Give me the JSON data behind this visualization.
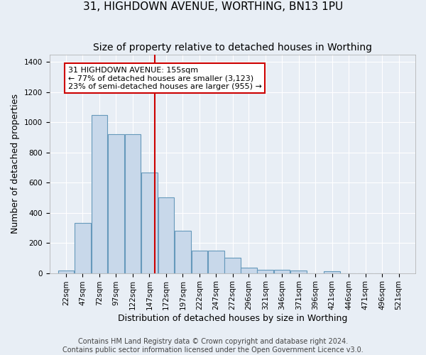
{
  "title": "31, HIGHDOWN AVENUE, WORTHING, BN13 1PU",
  "subtitle": "Size of property relative to detached houses in Worthing",
  "xlabel": "Distribution of detached houses by size in Worthing",
  "ylabel": "Number of detached properties",
  "footer_line1": "Contains HM Land Registry data © Crown copyright and database right 2024.",
  "footer_line2": "Contains public sector information licensed under the Open Government Licence v3.0.",
  "bins": [
    22,
    47,
    72,
    97,
    122,
    147,
    172,
    197,
    222,
    247,
    272,
    296,
    321,
    346,
    371,
    396,
    421,
    446,
    471,
    496,
    521
  ],
  "values": [
    15,
    330,
    1050,
    920,
    920,
    665,
    500,
    280,
    150,
    150,
    100,
    35,
    20,
    20,
    15,
    0,
    10,
    0,
    0,
    0
  ],
  "bar_color": "#c8d8ea",
  "bar_edge_color": "#6699bb",
  "property_size": 155,
  "red_line_color": "#cc0000",
  "annotation_line1": "31 HIGHDOWN AVENUE: 155sqm",
  "annotation_line2": "← 77% of detached houses are smaller (3,123)",
  "annotation_line3": "23% of semi-detached houses are larger (955) →",
  "annotation_box_color": "#ffffff",
  "annotation_box_edge": "#cc0000",
  "ylim": [
    0,
    1450
  ],
  "background_color": "#e8eef5",
  "grid_color": "#ffffff",
  "title_fontsize": 11,
  "subtitle_fontsize": 10,
  "axis_label_fontsize": 9,
  "tick_fontsize": 7.5,
  "annotation_fontsize": 8,
  "footer_fontsize": 7
}
